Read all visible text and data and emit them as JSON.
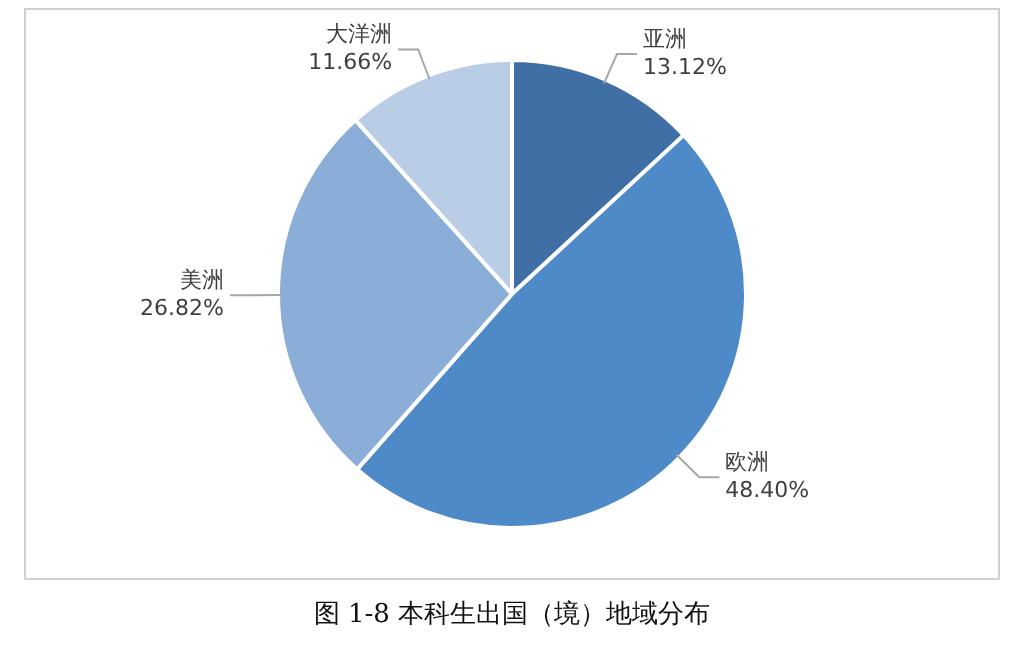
{
  "chart_data": {
    "type": "pie",
    "title": "图 1-8 本科生出国（境）地域分布",
    "categories": [
      "亚洲",
      "欧洲",
      "美洲",
      "大洋洲"
    ],
    "values": [
      13.12,
      48.4,
      26.82,
      11.66
    ],
    "colors": [
      "#3f6fa5",
      "#4f8ac8",
      "#8aaed8",
      "#b9cde6"
    ],
    "value_labels": [
      "13.12%",
      "48.40%",
      "26.82%",
      "11.66%"
    ],
    "legend": false
  }
}
